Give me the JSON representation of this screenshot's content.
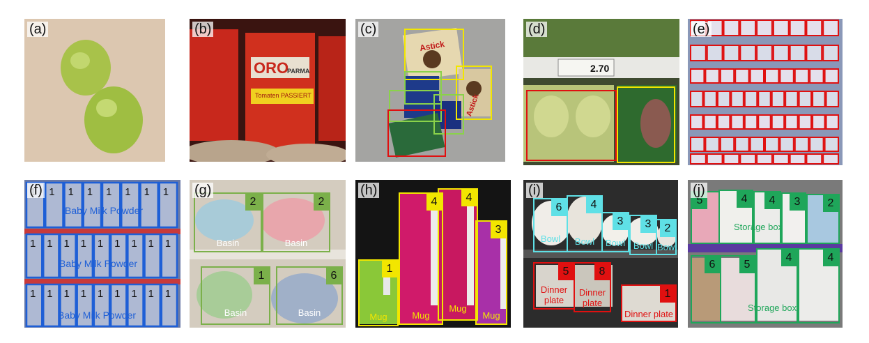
{
  "panels": {
    "a": {
      "label": "(a)"
    },
    "b": {
      "label": "(b)",
      "can_text": "ORO",
      "can_text2": "PARMA",
      "can_sub": "Tomaten PASSIERT"
    },
    "c": {
      "label": "(c)",
      "brand": "Astick"
    },
    "d": {
      "label": "(d)",
      "price": "2.70"
    },
    "e": {
      "label": "(e)"
    },
    "f": {
      "label": "(f)",
      "class_name": "Baby Milk Powder",
      "top_row_counts": [
        "1",
        "1",
        "1",
        "1",
        "1",
        "1"
      ]
    },
    "g": {
      "label": "(g)",
      "class_name": "Basin",
      "counts": [
        "2",
        "2",
        "1",
        "6"
      ]
    },
    "h": {
      "label": "(h)",
      "class_name": "Mug",
      "counts": [
        "1",
        "4",
        "4",
        "3"
      ]
    },
    "i": {
      "label": "(i)",
      "bowl": "Bowl",
      "plate": "Dinner plate",
      "bowl_counts": [
        "6",
        "4",
        "3",
        "3",
        "2"
      ],
      "plate_counts": [
        "5",
        "8",
        "1"
      ]
    },
    "j": {
      "label": "(j)",
      "class_name": "Storage box",
      "top_counts": [
        "5",
        "4",
        "4",
        "3",
        "2"
      ],
      "bottom_counts": [
        "6",
        "5",
        "4",
        "4"
      ]
    }
  },
  "colors": {
    "yellow": "#f2e600",
    "red": "#e01010",
    "green_light": "#8ad24a",
    "blue": "#1e5fd6",
    "green_olive": "#7bb04a",
    "cyan": "#5fe0e6",
    "green_dark": "#1fa65a"
  }
}
